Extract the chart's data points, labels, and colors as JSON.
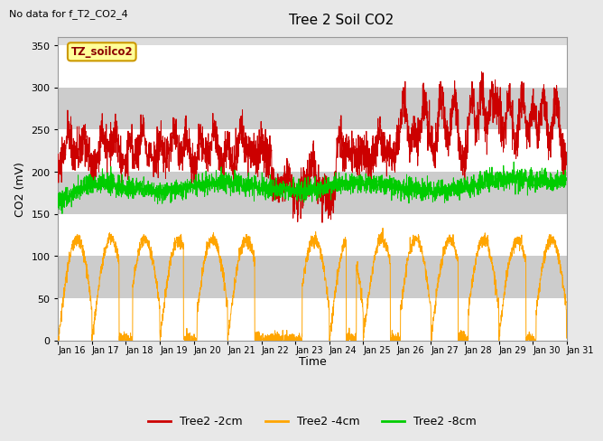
{
  "title": "Tree 2 Soil CO2",
  "subtitle": "No data for f_T2_CO2_4",
  "xlabel": "Time",
  "ylabel": "CO2 (mV)",
  "box_label": "TZ_soilco2",
  "ylim": [
    0,
    360
  ],
  "yticks": [
    0,
    50,
    100,
    150,
    200,
    250,
    300,
    350
  ],
  "x_labels": [
    "Jan 16",
    "Jan 17",
    "Jan 18",
    "Jan 19",
    "Jan 20",
    "Jan 21",
    "Jan 22",
    "Jan 23",
    "Jan 24",
    "Jan 25",
    "Jan 26",
    "Jan 27",
    "Jan 28",
    "Jan 29",
    "Jan 30",
    "Jan 31"
  ],
  "line1_color": "#CC0000",
  "line2_color": "#FFA500",
  "line3_color": "#00CC00",
  "legend_entries": [
    "Tree2 -2cm",
    "Tree2 -4cm",
    "Tree2 -8cm"
  ],
  "fig_bg_color": "#E8E8E8",
  "plot_bg_color": "#DCDCDC",
  "band_color_dark": "#CCCCCC",
  "band_color_light": "#DCDCDC",
  "grid_color": "#FFFFFF",
  "seed": 42
}
